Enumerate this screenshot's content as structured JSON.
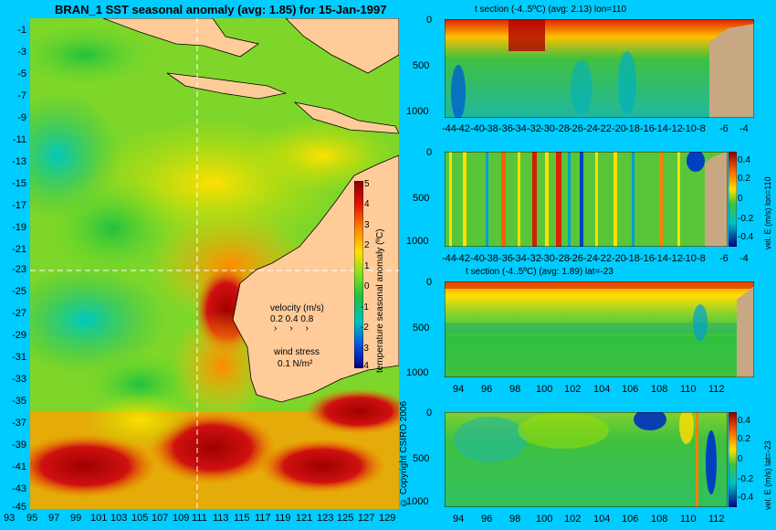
{
  "map": {
    "title": "BRAN_1 SST seasonal anomaly (avg: 1.85) for 15-Jan-1997",
    "lat_ticks": [
      "-1",
      "-3",
      "-5",
      "-7",
      "-9",
      "-11",
      "-13",
      "-15",
      "-17",
      "-19",
      "-21",
      "-23",
      "-25",
      "-27",
      "-29",
      "-31",
      "-33",
      "-35",
      "-37",
      "-39",
      "-41",
      "-43",
      "-45"
    ],
    "lon_ticks": [
      "93",
      "95",
      "97",
      "99",
      "101",
      "103",
      "105",
      "107",
      "109",
      "111",
      "113",
      "115",
      "117",
      "119",
      "121",
      "123",
      "125",
      "127",
      "129"
    ],
    "colorbar": {
      "label": "temperature seasonal anomaly (ºC)",
      "ticks": [
        "5",
        "4",
        "3",
        "2",
        "1",
        "0",
        "-1",
        "-2",
        "-3",
        "-4"
      ]
    },
    "velocity_legend": {
      "label": "velocity (m/s)",
      "scale": "0.2 0.4 0.8"
    },
    "wind_legend": {
      "label": "wind stress",
      "scale": "0.1 N/m²"
    },
    "copyright": "© Copyright CSIRO 2006",
    "section_lon": 110,
    "section_lat": -23
  },
  "panels": [
    {
      "title": "t section (-4..5ºC) (avg: 2.13) lon=110",
      "y_ticks": [
        "0",
        "500",
        "1000"
      ],
      "x_ticks": [
        "-44",
        "-42",
        "-40",
        "-38",
        "-36",
        "-34",
        "-32",
        "-30",
        "-28",
        "-26",
        "-24",
        "-22",
        "-20",
        "-18",
        "-16",
        "-14",
        "-12",
        "-10",
        "-8",
        "-6",
        "-4"
      ]
    },
    {
      "title": "",
      "y_ticks": [
        "0",
        "500",
        "1000"
      ],
      "x_ticks": [
        "-44",
        "-42",
        "-40",
        "-38",
        "-36",
        "-34",
        "-32",
        "-30",
        "-28",
        "-26",
        "-24",
        "-22",
        "-20",
        "-18",
        "-16",
        "-14",
        "-12",
        "-10",
        "-8",
        "-6",
        "-4"
      ],
      "colorbar_ticks": [
        "0.4",
        "0.2",
        "0",
        "-0.2",
        "-0.4"
      ],
      "colorbar_label": "vel. E (m/s) lon=110"
    },
    {
      "title": "t section (-4..5ºC) (avg: 1.89) lat=-23",
      "y_ticks": [
        "0",
        "500",
        "1000"
      ],
      "x_ticks": [
        "94",
        "96",
        "98",
        "100",
        "102",
        "104",
        "106",
        "108",
        "110",
        "112"
      ]
    },
    {
      "title": "",
      "y_ticks": [
        "0",
        "500",
        "1000"
      ],
      "x_ticks": [
        "94",
        "96",
        "98",
        "100",
        "102",
        "104",
        "106",
        "108",
        "110",
        "112"
      ],
      "colorbar_ticks": [
        "0.4",
        "0.2",
        "0",
        "-0.2",
        "-0.4"
      ],
      "colorbar_label": "vel. E (m/s) lat=-23"
    }
  ],
  "colors": {
    "background": "#00ccff",
    "land": "#ffcc99",
    "section_land": "#c8a882"
  }
}
